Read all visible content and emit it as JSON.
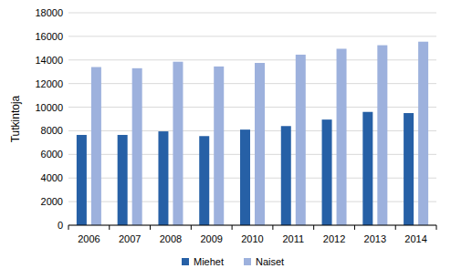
{
  "chart_data": {
    "type": "bar",
    "y_label": "Tutkintoja",
    "categories": [
      "2006",
      "2007",
      "2008",
      "2009",
      "2010",
      "2011",
      "2012",
      "2013",
      "2014"
    ],
    "series": [
      {
        "name": "Miehet",
        "color": "#2660a6",
        "values": [
          7650,
          7650,
          7950,
          7550,
          8100,
          8400,
          8950,
          9600,
          9500
        ]
      },
      {
        "name": "Naiset",
        "color": "#9db1dd",
        "values": [
          13400,
          13300,
          13850,
          13450,
          13750,
          14450,
          14950,
          15250,
          15550
        ]
      }
    ],
    "ylim": [
      0,
      18000
    ],
    "yticks": [
      0,
      2000,
      4000,
      6000,
      8000,
      10000,
      12000,
      14000,
      16000,
      18000
    ],
    "grid": true,
    "legend": "bottom"
  }
}
